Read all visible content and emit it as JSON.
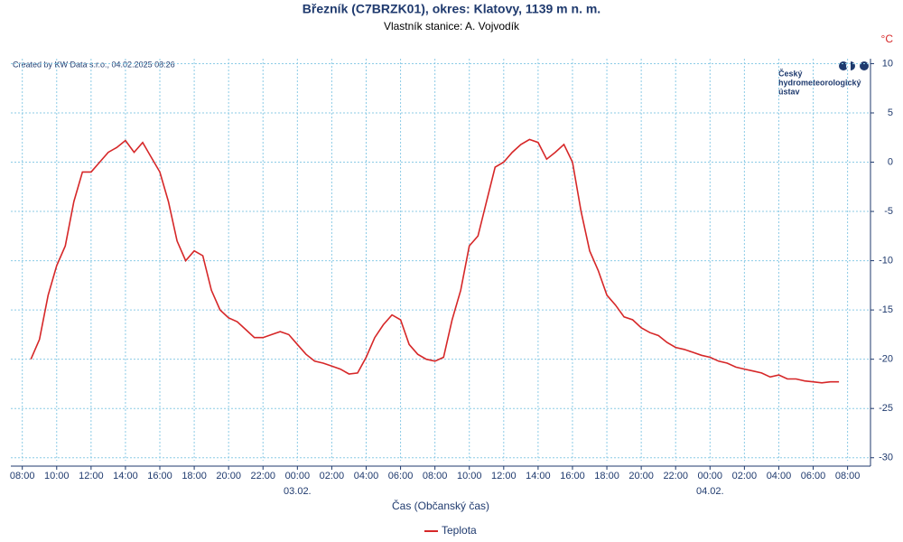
{
  "chart_data": {
    "type": "line",
    "title": "Březník (C7BRZK01), okres: Klatovy, 1139 m n. m.",
    "subtitle": "Vlastník stanice: A. Vojvodík",
    "credit": "Created by KW Data s.r.o., 04.02.2025 08:26",
    "logo": [
      "Český",
      "hydrometeorologický",
      "ústav"
    ],
    "x_label": "Čas (Občanský čas)",
    "y_unit": "°C",
    "grid": true,
    "xlim": [
      "2025-02-02T07:20",
      "2025-02-04T09:20"
    ],
    "ylim": [
      -30.3,
      10.5
    ],
    "yticks": [
      10,
      5,
      0,
      -5,
      -10,
      -15,
      -20,
      -25,
      -30
    ],
    "xticks": [
      {
        "value": "2025-02-02T08:00",
        "label": "08:00"
      },
      {
        "value": "2025-02-02T10:00",
        "label": "10:00"
      },
      {
        "value": "2025-02-02T12:00",
        "label": "12:00"
      },
      {
        "value": "2025-02-02T14:00",
        "label": "14:00"
      },
      {
        "value": "2025-02-02T16:00",
        "label": "16:00"
      },
      {
        "value": "2025-02-02T18:00",
        "label": "18:00"
      },
      {
        "value": "2025-02-02T20:00",
        "label": "20:00"
      },
      {
        "value": "2025-02-02T22:00",
        "label": "22:00"
      },
      {
        "value": "2025-02-03T00:00",
        "label": "00:00"
      },
      {
        "value": "2025-02-03T02:00",
        "label": "02:00"
      },
      {
        "value": "2025-02-03T04:00",
        "label": "04:00"
      },
      {
        "value": "2025-02-03T06:00",
        "label": "06:00"
      },
      {
        "value": "2025-02-03T08:00",
        "label": "08:00"
      },
      {
        "value": "2025-02-03T10:00",
        "label": "10:00"
      },
      {
        "value": "2025-02-03T12:00",
        "label": "12:00"
      },
      {
        "value": "2025-02-03T14:00",
        "label": "14:00"
      },
      {
        "value": "2025-02-03T16:00",
        "label": "16:00"
      },
      {
        "value": "2025-02-03T18:00",
        "label": "18:00"
      },
      {
        "value": "2025-02-03T20:00",
        "label": "20:00"
      },
      {
        "value": "2025-02-03T22:00",
        "label": "22:00"
      },
      {
        "value": "2025-02-04T00:00",
        "label": "00:00"
      },
      {
        "value": "2025-02-04T02:00",
        "label": "02:00"
      },
      {
        "value": "2025-02-04T04:00",
        "label": "04:00"
      },
      {
        "value": "2025-02-04T06:00",
        "label": "06:00"
      },
      {
        "value": "2025-02-04T08:00",
        "label": "08:00"
      }
    ],
    "date_labels": [
      {
        "value": "2025-02-03T00:00",
        "label": "03.02."
      },
      {
        "value": "2025-02-04T00:00",
        "label": "04.02."
      }
    ],
    "x": [
      "2025-02-02T08:30",
      "2025-02-02T09:00",
      "2025-02-02T09:30",
      "2025-02-02T10:00",
      "2025-02-02T10:30",
      "2025-02-02T11:00",
      "2025-02-02T11:30",
      "2025-02-02T12:00",
      "2025-02-02T12:30",
      "2025-02-02T13:00",
      "2025-02-02T13:30",
      "2025-02-02T14:00",
      "2025-02-02T14:30",
      "2025-02-02T15:00",
      "2025-02-02T15:30",
      "2025-02-02T16:00",
      "2025-02-02T16:30",
      "2025-02-02T17:00",
      "2025-02-02T17:30",
      "2025-02-02T18:00",
      "2025-02-02T18:30",
      "2025-02-02T19:00",
      "2025-02-02T19:30",
      "2025-02-02T20:00",
      "2025-02-02T20:30",
      "2025-02-02T21:00",
      "2025-02-02T21:30",
      "2025-02-02T22:00",
      "2025-02-02T22:30",
      "2025-02-02T23:00",
      "2025-02-02T23:30",
      "2025-02-03T00:00",
      "2025-02-03T00:30",
      "2025-02-03T01:00",
      "2025-02-03T01:30",
      "2025-02-03T02:00",
      "2025-02-03T02:30",
      "2025-02-03T03:00",
      "2025-02-03T03:30",
      "2025-02-03T04:00",
      "2025-02-03T04:30",
      "2025-02-03T05:00",
      "2025-02-03T05:30",
      "2025-02-03T06:00",
      "2025-02-03T06:30",
      "2025-02-03T07:00",
      "2025-02-03T07:30",
      "2025-02-03T08:00",
      "2025-02-03T08:30",
      "2025-02-03T09:00",
      "2025-02-03T09:30",
      "2025-02-03T10:00",
      "2025-02-03T10:30",
      "2025-02-03T11:00",
      "2025-02-03T11:30",
      "2025-02-03T12:00",
      "2025-02-03T12:30",
      "2025-02-03T13:00",
      "2025-02-03T13:30",
      "2025-02-03T14:00",
      "2025-02-03T14:30",
      "2025-02-03T15:00",
      "2025-02-03T15:30",
      "2025-02-03T16:00",
      "2025-02-03T16:30",
      "2025-02-03T17:00",
      "2025-02-03T17:30",
      "2025-02-03T18:00",
      "2025-02-03T18:30",
      "2025-02-03T19:00",
      "2025-02-03T19:30",
      "2025-02-03T20:00",
      "2025-02-03T20:30",
      "2025-02-03T21:00",
      "2025-02-03T21:30",
      "2025-02-03T22:00",
      "2025-02-03T22:30",
      "2025-02-03T23:00",
      "2025-02-03T23:30",
      "2025-02-04T00:00",
      "2025-02-04T00:30",
      "2025-02-04T01:00",
      "2025-02-04T01:30",
      "2025-02-04T02:00",
      "2025-02-04T02:30",
      "2025-02-04T03:00",
      "2025-02-04T03:30",
      "2025-02-04T04:00",
      "2025-02-04T04:30",
      "2025-02-04T05:00",
      "2025-02-04T05:30",
      "2025-02-04T06:00",
      "2025-02-04T06:30",
      "2025-02-04T07:00",
      "2025-02-04T07:30"
    ],
    "series": [
      {
        "name": "Teplota",
        "color": "#d62728",
        "values": [
          -20,
          -18,
          -13.5,
          -10.5,
          -8.5,
          -4,
          -1,
          -1,
          0,
          1,
          1.5,
          2.2,
          1,
          2,
          0.5,
          -1,
          -4,
          -8,
          -10,
          -9,
          -9.5,
          -13,
          -15,
          -15.8,
          -16.2,
          -17,
          -17.8,
          -17.8,
          -17.5,
          -17.2,
          -17.5,
          -18.5,
          -19.5,
          -20.2,
          -20.4,
          -20.7,
          -21,
          -21.5,
          -21.4,
          -19.8,
          -17.8,
          -16.5,
          -15.5,
          -16,
          -18.5,
          -19.5,
          -20,
          -20.2,
          -19.8,
          -16,
          -13,
          -8.5,
          -7.5,
          -4,
          -0.5,
          0,
          1,
          1.8,
          2.3,
          2,
          0.3,
          1,
          1.8,
          0,
          -5,
          -9,
          -11,
          -13.5,
          -14.5,
          -15.7,
          -16,
          -16.8,
          -17.3,
          -17.6,
          -18.3,
          -18.8,
          -19,
          -19.3,
          -19.6,
          -19.8,
          -20.2,
          -20.4,
          -20.8,
          -21,
          -21.2,
          -21.4,
          -21.8,
          -21.6,
          -22,
          -22,
          -22.2,
          -22.3,
          -22.4,
          -22.3,
          -22.3
        ]
      }
    ]
  }
}
